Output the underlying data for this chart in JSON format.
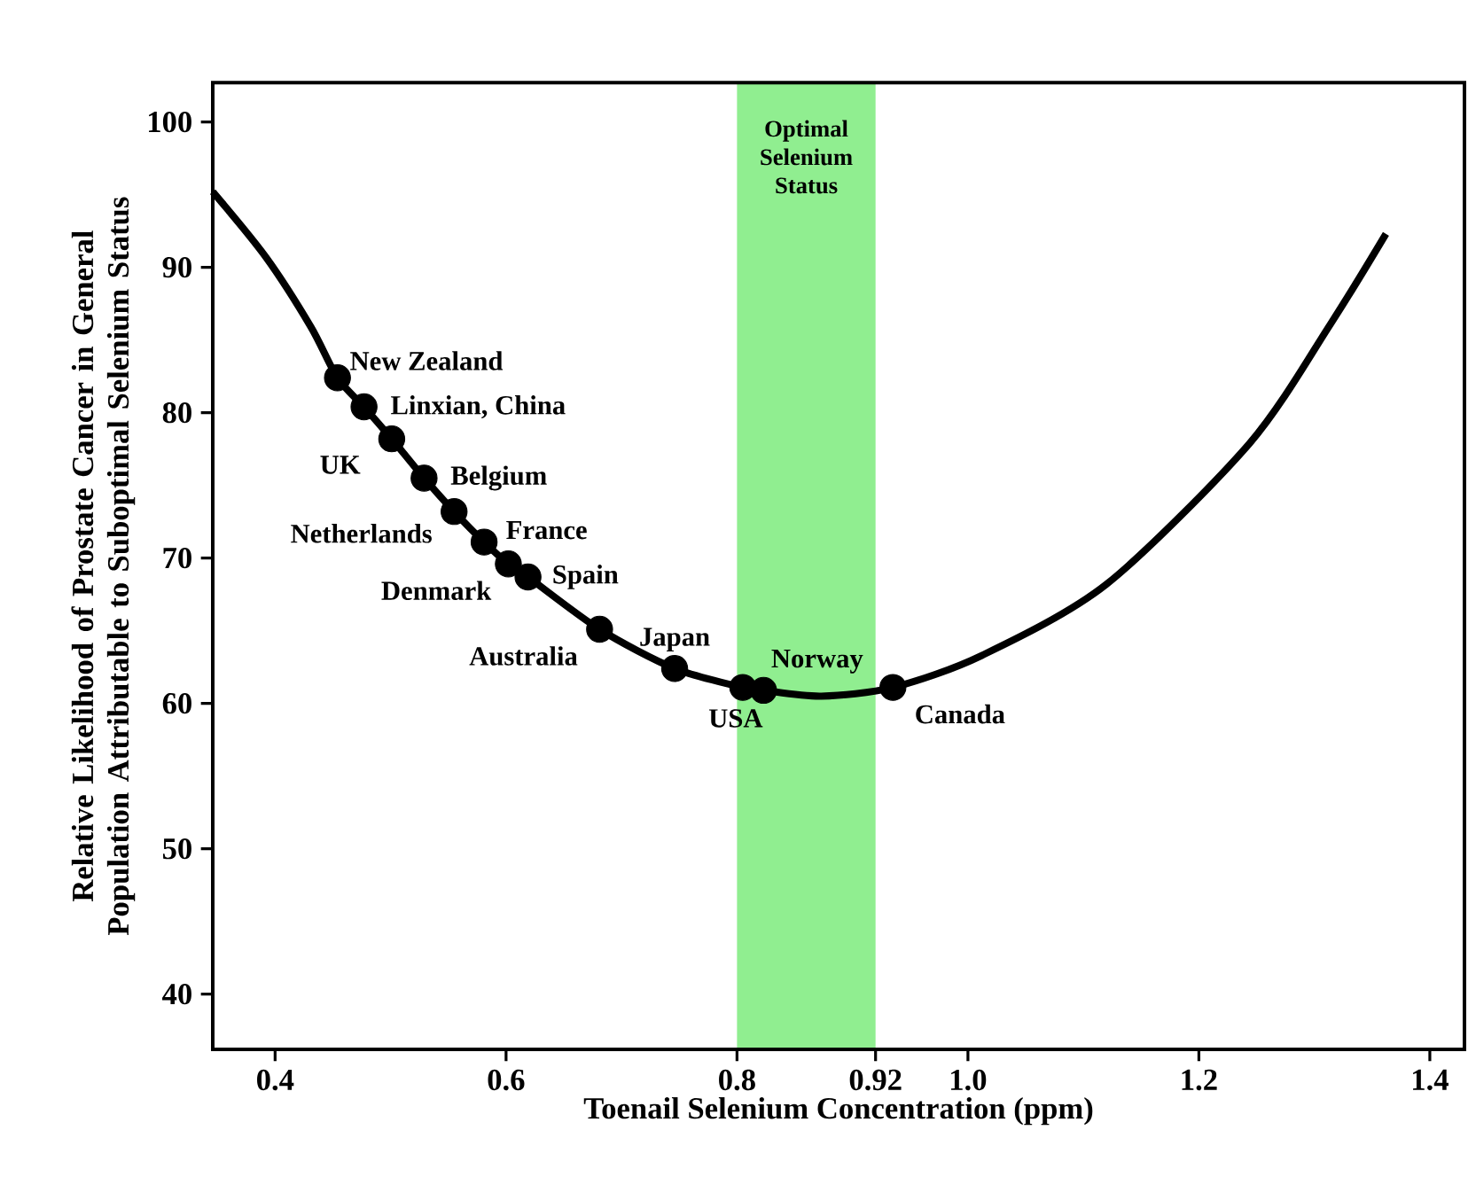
{
  "chart_data": {
    "type": "line",
    "xlabel": "Toenail Selenium Concentration (ppm)",
    "ylabel": "Relative Likelihood of Prostate Cancer in General Population Attributable to Suboptimal Selenium Status",
    "xlim": [
      0.346,
      1.43
    ],
    "ylim": [
      36.2,
      102.7
    ],
    "xticks": [
      0.4,
      0.6,
      0.8,
      0.92,
      {
        "value": 1.0,
        "label": "1.0"
      },
      1.2,
      1.4
    ],
    "yticks": [
      40,
      50,
      60,
      70,
      80,
      90,
      100
    ],
    "bands": [
      {
        "axis": "x",
        "from": 0.8,
        "to": 0.92,
        "label": "Optimal Selenium Status",
        "color": "#90ee90"
      }
    ],
    "series": [
      {
        "color": "#000000",
        "marker": "none",
        "x": [
          0.346,
          0.392,
          0.431,
          0.454,
          0.477,
          0.501,
          0.529,
          0.555,
          0.581,
          0.602,
          0.619,
          0.681,
          0.746,
          0.805,
          0.823,
          0.873,
          0.935,
          1.012,
          1.12,
          1.244,
          1.314,
          1.362
        ],
        "values": [
          95.2,
          90.7,
          85.9,
          82.4,
          80.4,
          78.2,
          75.5,
          73.2,
          71.1,
          69.6,
          68.7,
          65.1,
          62.4,
          61.1,
          60.9,
          60.5,
          61.1,
          63.3,
          68.2,
          77.9,
          86.1,
          92.3
        ]
      },
      {
        "type": "scatter",
        "color": "#000000",
        "marker": "circle",
        "x": [
          0.454,
          0.477,
          0.501,
          0.529,
          0.555,
          0.581,
          0.602,
          0.619,
          0.681,
          0.746,
          0.805,
          0.823,
          0.935
        ],
        "values": [
          82.4,
          80.4,
          78.2,
          75.5,
          73.2,
          71.1,
          69.6,
          68.7,
          65.1,
          62.4,
          61.1,
          60.9,
          61.1
        ]
      }
    ],
    "annotations": [
      {
        "text": "New Zealand",
        "x": 0.454,
        "y": 82.4
      },
      {
        "text": "Linxian, China",
        "x": 0.477,
        "y": 80.4
      },
      {
        "text": "UK",
        "x": 0.501,
        "y": 78.2
      },
      {
        "text": "Belgium",
        "x": 0.529,
        "y": 75.5
      },
      {
        "text": "Netherlands",
        "x": 0.555,
        "y": 73.2
      },
      {
        "text": "France",
        "x": 0.581,
        "y": 71.1
      },
      {
        "text": "Denmark",
        "x": 0.602,
        "y": 69.6
      },
      {
        "text": "Spain",
        "x": 0.619,
        "y": 68.7
      },
      {
        "text": "Australia",
        "x": 0.681,
        "y": 65.1
      },
      {
        "text": "Japan",
        "x": 0.746,
        "y": 62.4
      },
      {
        "text": "USA",
        "x": 0.805,
        "y": 61.1
      },
      {
        "text": "Norway",
        "x": 0.823,
        "y": 60.9
      },
      {
        "text": "Canada",
        "x": 0.935,
        "y": 61.1
      }
    ]
  }
}
